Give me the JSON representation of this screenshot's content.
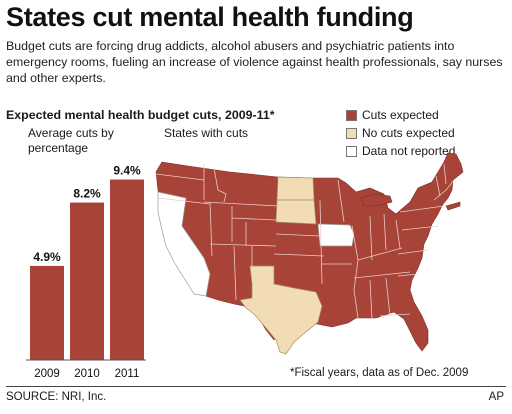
{
  "headline": "States cut mental health funding",
  "intro": "Budget cuts are forcing drug addicts, alcohol abusers and psychiatric patients into emergency rooms, fueling an increase of violence against health professionals, say nurses and other experts.",
  "footnote": "*Fiscal years, data as of Dec. 2009",
  "source": "SOURCE: NRI, Inc.",
  "credit": "AP",
  "colors": {
    "cuts_expected": "#a84338",
    "no_cuts_expected": "#f1dcb4",
    "not_reported": "#ffffff",
    "state_border": "#e8ccc6"
  },
  "chart_data": [
    {
      "type": "bar",
      "title": "Expected mental health budget cuts, 2009-11*",
      "ylabel": "Average cuts by percentage",
      "categories": [
        "2009",
        "2010",
        "2011"
      ],
      "values": [
        4.9,
        8.2,
        9.4
      ],
      "value_labels": [
        "4.9%",
        "8.2%",
        "9.4%"
      ],
      "ylim": [
        0,
        10
      ],
      "grid": false
    },
    {
      "type": "map",
      "title": "States with cuts",
      "legend_position": "top-right",
      "legend": [
        {
          "label": "Cuts expected",
          "color": "#a84338"
        },
        {
          "label": "No cuts expected",
          "color": "#f1dcb4"
        },
        {
          "label": "Data not reported",
          "color": "#ffffff"
        }
      ],
      "no_cuts_expected": [
        "North Dakota",
        "South Dakota",
        "Texas"
      ],
      "not_reported": [
        "California",
        "Iowa"
      ],
      "cuts_expected": "all other states"
    }
  ]
}
